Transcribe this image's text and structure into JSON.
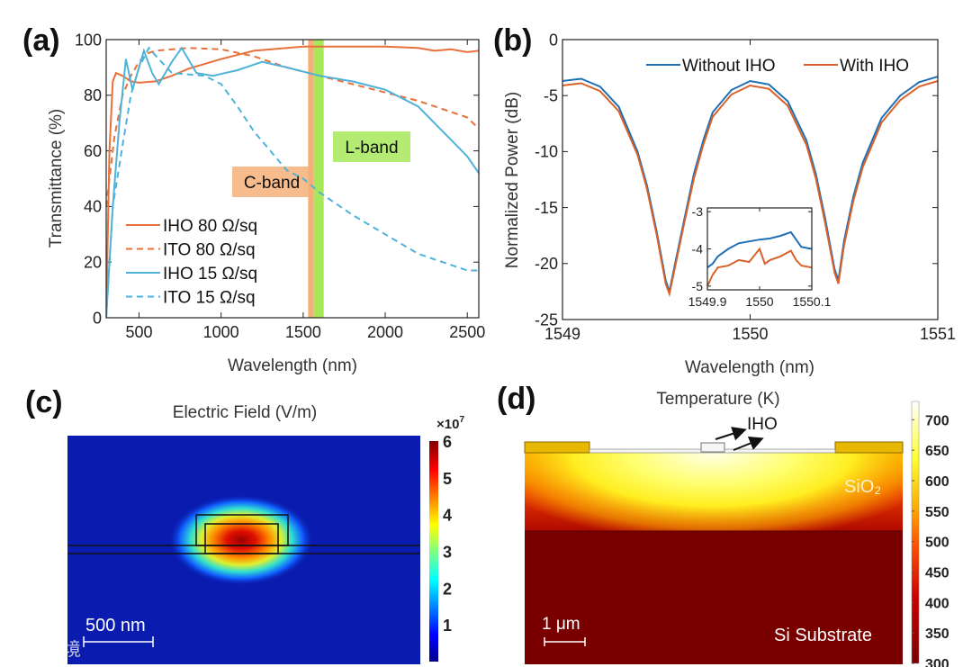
{
  "panel_labels": {
    "a": "(a)",
    "b": "(b)",
    "c": "(c)",
    "d": "(d)"
  },
  "watermark": "大数跨境",
  "chart_data": [
    {
      "id": "a",
      "type": "line",
      "xlabel": "Wavelength (nm)",
      "ylabel": "Transmittance (%)",
      "xlim": [
        300,
        2570
      ],
      "ylim": [
        0,
        100
      ],
      "xticks": [
        500,
        1000,
        1500,
        2000,
        2500
      ],
      "yticks": [
        0,
        20,
        40,
        60,
        80,
        100
      ],
      "legend_position": "bottom-left",
      "bands": [
        {
          "label": "C-band",
          "range": [
            1530,
            1565
          ],
          "color": "#f5b07a"
        },
        {
          "label": "L-band",
          "range": [
            1565,
            1625
          ],
          "color": "#a6e85a"
        }
      ],
      "series": [
        {
          "name": "IHO 80  Ω/sq",
          "color": "#e8703a",
          "dash": false,
          "x": [
            300,
            320,
            340,
            360,
            400,
            450,
            500,
            600,
            700,
            800,
            1000,
            1200,
            1500,
            1800,
            2000,
            2200,
            2300,
            2400,
            2500,
            2570
          ],
          "y": [
            0,
            60,
            85,
            88,
            87,
            85,
            84.5,
            85,
            87,
            89.5,
            93,
            96,
            97.5,
            97.5,
            97.5,
            97,
            96,
            96.5,
            95.5,
            96
          ]
        },
        {
          "name": "ITO 80  Ω/sq",
          "color": "#e8703a",
          "dash": true,
          "x": [
            300,
            350,
            400,
            450,
            500,
            550,
            600,
            800,
            1000,
            1200,
            1400,
            1600,
            1800,
            2000,
            2200,
            2400,
            2500,
            2570
          ],
          "y": [
            40,
            65,
            80,
            87,
            92,
            95,
            96,
            97,
            96.5,
            94,
            90,
            87,
            84,
            81,
            78,
            74,
            72,
            68
          ]
        },
        {
          "name": "IHO 15  Ω/sq",
          "color": "#4fb3d9",
          "dash": false,
          "x": [
            300,
            340,
            380,
            420,
            460,
            500,
            530,
            580,
            620,
            700,
            760,
            850,
            950,
            1100,
            1250,
            1400,
            1600,
            1800,
            2000,
            2200,
            2400,
            2500,
            2570
          ],
          "y": [
            0,
            40,
            70,
            93,
            82,
            90,
            96,
            88,
            84,
            92,
            97,
            88,
            87,
            89,
            92,
            90,
            87,
            85,
            82,
            76,
            64,
            58,
            52
          ]
        },
        {
          "name": "ITO 15  Ω/sq",
          "color": "#4fb3d9",
          "dash": true,
          "x": [
            300,
            340,
            400,
            450,
            500,
            560,
            620,
            700,
            900,
            1000,
            1100,
            1200,
            1300,
            1400,
            1500,
            1600,
            1800,
            2000,
            2200,
            2400,
            2500,
            2570
          ],
          "y": [
            0,
            40,
            62,
            80,
            90,
            97,
            93,
            88,
            87,
            84,
            76,
            67,
            60,
            53,
            50,
            45,
            37,
            30,
            23,
            19,
            17,
            17
          ]
        }
      ]
    },
    {
      "id": "b",
      "type": "line",
      "xlabel": "Wavelength (nm)",
      "ylabel": "Normalized Power (dB)",
      "xlim": [
        1549,
        1551
      ],
      "ylim": [
        -25,
        0
      ],
      "xticks": [
        1549,
        1550,
        1551
      ],
      "yticks": [
        0,
        -5,
        -10,
        -15,
        -20,
        -25
      ],
      "legend_position": "top-right",
      "series": [
        {
          "name": "Without IHO",
          "color": "#1f6fb4",
          "x": [
            1549,
            1549.1,
            1549.2,
            1549.3,
            1549.4,
            1549.45,
            1549.5,
            1549.55,
            1549.57,
            1549.6,
            1549.65,
            1549.7,
            1549.75,
            1549.8,
            1549.9,
            1550,
            1550.1,
            1550.2,
            1550.3,
            1550.35,
            1550.4,
            1550.45,
            1550.47,
            1550.5,
            1550.55,
            1550.6,
            1550.7,
            1550.8,
            1550.9,
            1551
          ],
          "y": [
            -3.7,
            -3.5,
            -4.2,
            -6,
            -10,
            -13,
            -17,
            -21.5,
            -22.5,
            -20,
            -16,
            -12,
            -9,
            -6.5,
            -4.5,
            -3.7,
            -4,
            -5.5,
            -9,
            -12,
            -16,
            -20.5,
            -21.5,
            -18,
            -14,
            -11,
            -7,
            -5,
            -3.8,
            -3.3
          ]
        },
        {
          "name": "With IHO",
          "color": "#d9622b",
          "x": [
            1549,
            1549.1,
            1549.2,
            1549.3,
            1549.4,
            1549.45,
            1549.5,
            1549.55,
            1549.57,
            1549.6,
            1549.65,
            1549.7,
            1549.75,
            1549.8,
            1549.9,
            1550,
            1550.1,
            1550.2,
            1550.3,
            1550.35,
            1550.4,
            1550.45,
            1550.47,
            1550.5,
            1550.55,
            1550.6,
            1550.7,
            1550.8,
            1550.9,
            1551
          ],
          "y": [
            -4.1,
            -3.9,
            -4.6,
            -6.4,
            -10.3,
            -13.3,
            -17.3,
            -21.8,
            -22.7,
            -20.3,
            -16.3,
            -12.4,
            -9.4,
            -6.9,
            -4.9,
            -4.1,
            -4.4,
            -5.9,
            -9.4,
            -12.4,
            -16.4,
            -20.8,
            -21.8,
            -18.4,
            -14.4,
            -11.4,
            -7.4,
            -5.4,
            -4.2,
            -3.7
          ]
        }
      ],
      "inset": {
        "xlim": [
          1549.9,
          1550.1
        ],
        "ylim": [
          -5.1,
          -2.9
        ],
        "xticks": [
          1549.9,
          1550,
          1550.1
        ],
        "xtick_labels": [
          "1549.9",
          "1550",
          "1550.1"
        ],
        "yticks": [
          -3,
          -4,
          -5
        ],
        "series": [
          {
            "name": "Without IHO",
            "color": "#1f6fb4",
            "x": [
              1549.9,
              1549.91,
              1549.92,
              1549.94,
              1549.96,
              1549.98,
              1550,
              1550.02,
              1550.04,
              1550.06,
              1550.07,
              1550.08,
              1550.1
            ],
            "y": [
              -4.5,
              -4.4,
              -4.2,
              -4.0,
              -3.85,
              -3.8,
              -3.75,
              -3.72,
              -3.65,
              -3.55,
              -3.75,
              -3.95,
              -4.0
            ]
          },
          {
            "name": "With IHO",
            "color": "#d9622b",
            "x": [
              1549.9,
              1549.91,
              1549.92,
              1549.94,
              1549.96,
              1549.98,
              1550,
              1550.01,
              1550.02,
              1550.04,
              1550.06,
              1550.07,
              1550.08,
              1550.1
            ],
            "y": [
              -5.0,
              -4.7,
              -4.5,
              -4.45,
              -4.3,
              -4.35,
              -4.0,
              -4.4,
              -4.3,
              -4.2,
              -4.05,
              -4.3,
              -4.45,
              -4.5
            ]
          }
        ]
      }
    },
    {
      "id": "c",
      "type": "heatmap",
      "title": "Electric Field (V/m)",
      "colorbar_exponent": "×10",
      "colorbar_exponent_power": "7",
      "colorbar_ticks": [
        1,
        2,
        3,
        4,
        5,
        6
      ],
      "colorbar_range": [
        0,
        6
      ],
      "colormap": "jet",
      "scale_bar": "500 nm"
    },
    {
      "id": "d",
      "type": "heatmap",
      "title": "Temperature (K)",
      "colorbar_ticks": [
        300,
        350,
        400,
        450,
        500,
        550,
        600,
        650,
        700
      ],
      "colorbar_range": [
        300,
        730
      ],
      "colormap": "hot",
      "annotations": {
        "iho": "IHO",
        "sio2": "SiO₂",
        "substrate": "Si Substrate"
      },
      "scale_bar": "1 μm"
    }
  ]
}
